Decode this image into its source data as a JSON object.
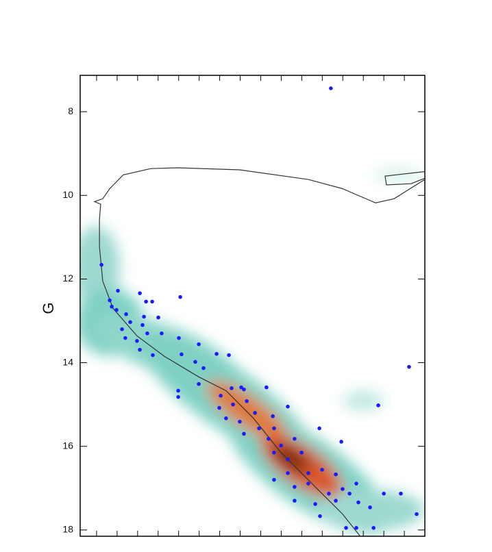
{
  "chart_data": {
    "type": "scatter",
    "y_label": "G",
    "xlim": [
      0,
      1.68
    ],
    "xticks": [
      0.08,
      0.18,
      0.28,
      0.38,
      0.48,
      0.58,
      0.68,
      0.78,
      0.88,
      0.98,
      1.08,
      1.18,
      1.28,
      1.38,
      1.48,
      1.58
    ],
    "ylim": [
      18.15,
      7.13
    ],
    "yticks": [
      8,
      10,
      12,
      14,
      16,
      18
    ],
    "points": {
      "color": "#1a1aff",
      "x": [
        1.222,
        1.603,
        1.453,
        0.104,
        0.184,
        0.144,
        0.154,
        0.291,
        0.351,
        0.321,
        0.488,
        0.224,
        0.177,
        0.244,
        0.311,
        0.381,
        0.304,
        0.327,
        0.397,
        0.204,
        0.22,
        0.277,
        0.291,
        0.354,
        0.481,
        0.494,
        0.578,
        0.561,
        0.601,
        0.665,
        0.725,
        0.478,
        0.478,
        0.578,
        0.685,
        0.738,
        0.785,
        0.798,
        0.908,
        0.678,
        0.745,
        0.812,
        0.711,
        0.778,
        0.852,
        0.939,
        1.012,
        0.872,
        0.945,
        0.798,
        0.918,
        0.979,
        1.045,
        0.945,
        1.012,
        1.079,
        1.166,
        1.273,
        1.012,
        1.112,
        1.179,
        1.246,
        0.945,
        1.045,
        1.112,
        1.212,
        1.279,
        1.346,
        1.313,
        1.045,
        1.146,
        1.246,
        1.356,
        1.413,
        1.48,
        1.563,
        1.64,
        1.169,
        1.346,
        1.43,
        1.296
      ],
      "y": [
        7.44,
        14.1,
        15.02,
        11.66,
        12.28,
        12.51,
        12.66,
        12.34,
        12.54,
        12.54,
        12.43,
        12.84,
        12.74,
        13.03,
        12.9,
        12.92,
        13.1,
        13.3,
        13.3,
        13.2,
        13.41,
        13.48,
        13.69,
        13.82,
        13.41,
        13.8,
        13.56,
        13.98,
        14.13,
        13.79,
        13.82,
        14.67,
        14.82,
        14.51,
        14.79,
        14.61,
        14.59,
        14.64,
        14.59,
        15.08,
        15.0,
        14.92,
        15.33,
        15.41,
        15.2,
        15.28,
        15.05,
        15.57,
        15.57,
        15.7,
        15.82,
        15.98,
        15.82,
        16.15,
        16.31,
        16.15,
        15.57,
        15.89,
        16.64,
        16.64,
        16.56,
        16.67,
        16.8,
        16.97,
        16.89,
        17.13,
        17.02,
        16.89,
        17.13,
        17.3,
        17.38,
        17.3,
        17.34,
        17.46,
        17.13,
        17.13,
        17.62,
        17.67,
        17.95,
        17.95,
        17.95
      ]
    },
    "curve": {
      "color": "#333333",
      "x": [
        1.373,
        1.279,
        1.146,
        0.979,
        0.845,
        0.711,
        0.578,
        0.411,
        0.277,
        0.16,
        0.11,
        0.094,
        0.094,
        0.1,
        0.07,
        0.11,
        0.144,
        0.21,
        0.344,
        0.478,
        0.778,
        1.112,
        1.279,
        1.44,
        1.53,
        1.68,
        null,
        1.68,
        1.486,
        1.493,
        1.613,
        1.68
      ],
      "y": [
        18.2,
        17.62,
        16.97,
        16.15,
        15.33,
        14.67,
        14.34,
        13.85,
        13.36,
        12.7,
        12.05,
        11.23,
        10.57,
        10.21,
        10.15,
        10.08,
        9.84,
        9.51,
        9.36,
        9.34,
        9.39,
        9.62,
        9.84,
        10.18,
        10.08,
        9.62,
        null,
        9.43,
        9.54,
        9.75,
        9.72,
        9.59
      ]
    }
  }
}
